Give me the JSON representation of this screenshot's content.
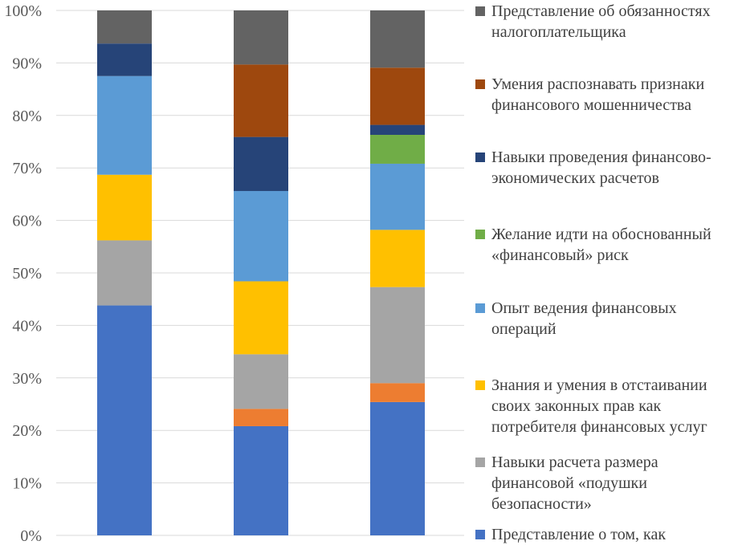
{
  "chart_data": {
    "type": "bar",
    "stacked": true,
    "percent": true,
    "title": "",
    "xlabel": "",
    "ylabel": "",
    "ylim": [
      0,
      100
    ],
    "y_ticks": [
      "0%",
      "10%",
      "20%",
      "30%",
      "40%",
      "50%",
      "60%",
      "70%",
      "80%",
      "90%",
      "100%"
    ],
    "grid": true,
    "legend_position": "right",
    "categories": [
      "",
      "",
      ""
    ],
    "series": [
      {
        "name": "Представление о том, как",
        "color": "#4472C4",
        "values": [
          43.8,
          20.8,
          25.4
        ]
      },
      {
        "name": "",
        "color": "#ED7D31",
        "values": [
          0,
          3.3,
          3.6
        ]
      },
      {
        "name": "Навыки расчета размера финансовой «подушки безопасности»",
        "color": "#A5A5A5",
        "values": [
          12.4,
          10.4,
          18.3
        ]
      },
      {
        "name": "Знания и умения в отстаивании своих законных прав как потребителя финансовых услуг",
        "color": "#FFC000",
        "values": [
          12.5,
          13.9,
          10.9
        ]
      },
      {
        "name": "Опыт ведения финансовых операций",
        "color": "#5B9BD5",
        "values": [
          18.8,
          17.2,
          12.6
        ]
      },
      {
        "name": "Желание идти на обоснованный «финансовый» риск",
        "color": "#70AD47",
        "values": [
          0,
          0,
          5.5
        ]
      },
      {
        "name": "Навыки проведения финансово-экономических расчетов",
        "color": "#264478",
        "values": [
          6.2,
          10.3,
          1.9
        ]
      },
      {
        "name": "Умения распознавать признаки финансового мошенничества",
        "color": "#9E480E",
        "values": [
          0,
          13.8,
          10.9
        ]
      },
      {
        "name": "Представление об обязанностях налогоплательщика",
        "color": "#636363",
        "values": [
          6.3,
          10.3,
          10.9
        ]
      }
    ],
    "legend": [
      {
        "series": 8,
        "lines": [
          "Представление об обязанностях",
          "налогоплательщика"
        ]
      },
      {
        "series": 7,
        "lines": [
          "Умения распознавать признаки",
          "финансового мошенничества"
        ]
      },
      {
        "series": 6,
        "lines": [
          "Навыки проведения финансово-",
          "экономических расчетов"
        ]
      },
      {
        "series": 5,
        "lines": [
          "Желание идти на обоснованный",
          "«финансовый» риск"
        ]
      },
      {
        "series": 4,
        "lines": [
          "Опыт ведения финансовых",
          "операций"
        ]
      },
      {
        "series": 3,
        "lines": [
          "Знания и умения в отстаивании",
          "своих законных прав как",
          "потребителя финансовых услуг"
        ]
      },
      {
        "series": 2,
        "lines": [
          "Навыки расчета размера",
          "финансовой «подушки",
          "безопасности»"
        ]
      },
      {
        "series": 0,
        "lines": [
          "Представление о том, как"
        ]
      }
    ]
  }
}
